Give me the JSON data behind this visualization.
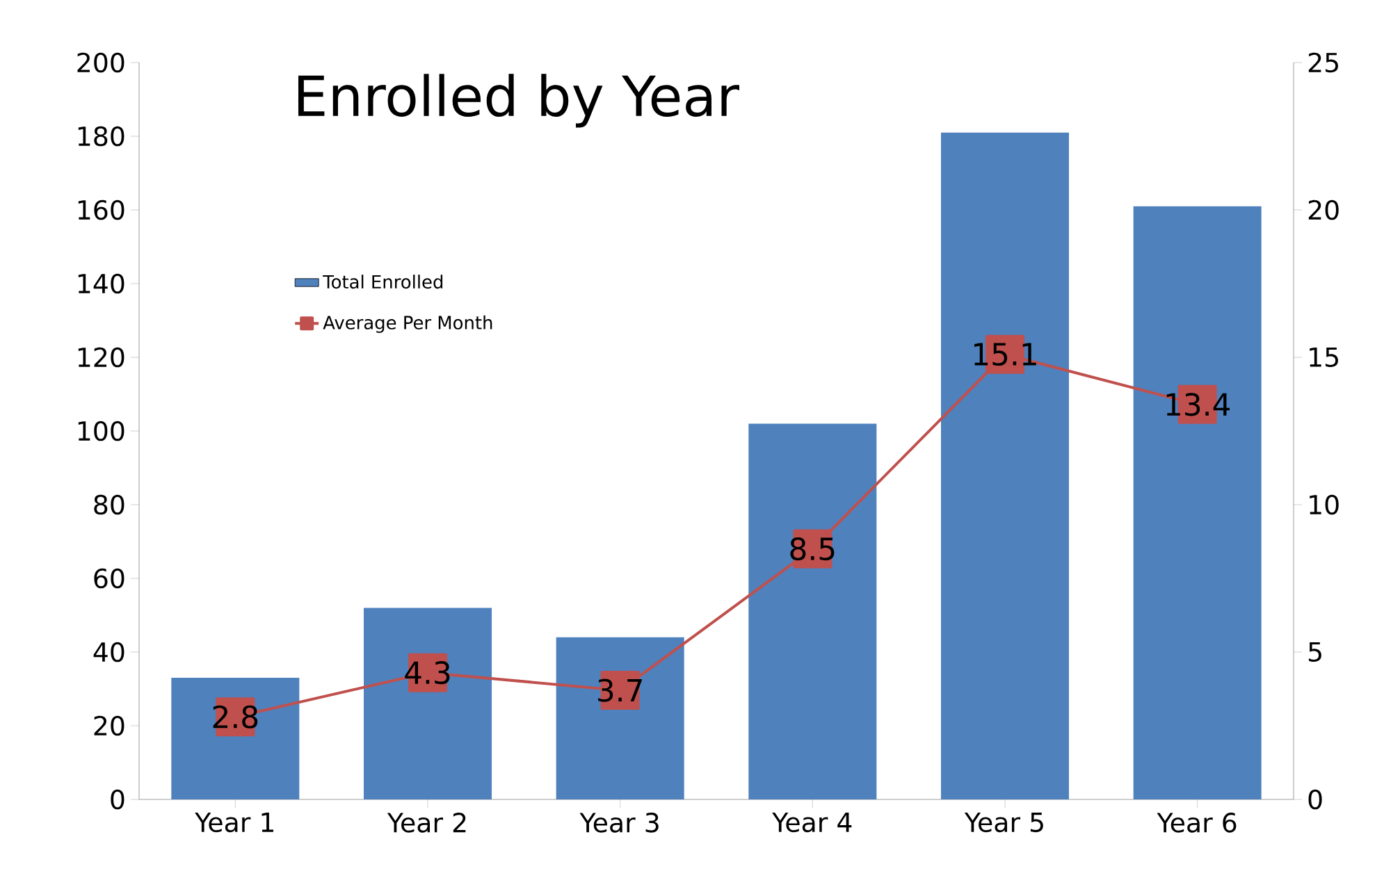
{
  "chart_data": {
    "type": "bar",
    "title": "Enrolled by Year",
    "categories": [
      "Year 1",
      "Year 2",
      "Year 3",
      "Year 4",
      "Year 5",
      "Year 6"
    ],
    "series": [
      {
        "name": "Total Enrolled",
        "color": "#4f81bd",
        "values": [
          33,
          52,
          44,
          102,
          181,
          161
        ]
      },
      {
        "name": "Average Per Month",
        "type": "line",
        "axis": "y2",
        "color": "#c0504d",
        "marker": "square",
        "values": [
          2.8,
          4.3,
          3.7,
          8.5,
          15.1,
          13.4
        ],
        "value_labels": [
          "2.8",
          "4.3",
          "3.7",
          "8.5",
          "15.1",
          "13.4"
        ]
      }
    ],
    "ylim": [
      0,
      200
    ],
    "yticks": [
      0,
      20,
      40,
      60,
      80,
      100,
      120,
      140,
      160,
      180,
      200
    ],
    "y2lim": [
      0,
      25
    ],
    "y2ticks": [
      0,
      5,
      10,
      15,
      20,
      25
    ],
    "legend": "top left"
  }
}
